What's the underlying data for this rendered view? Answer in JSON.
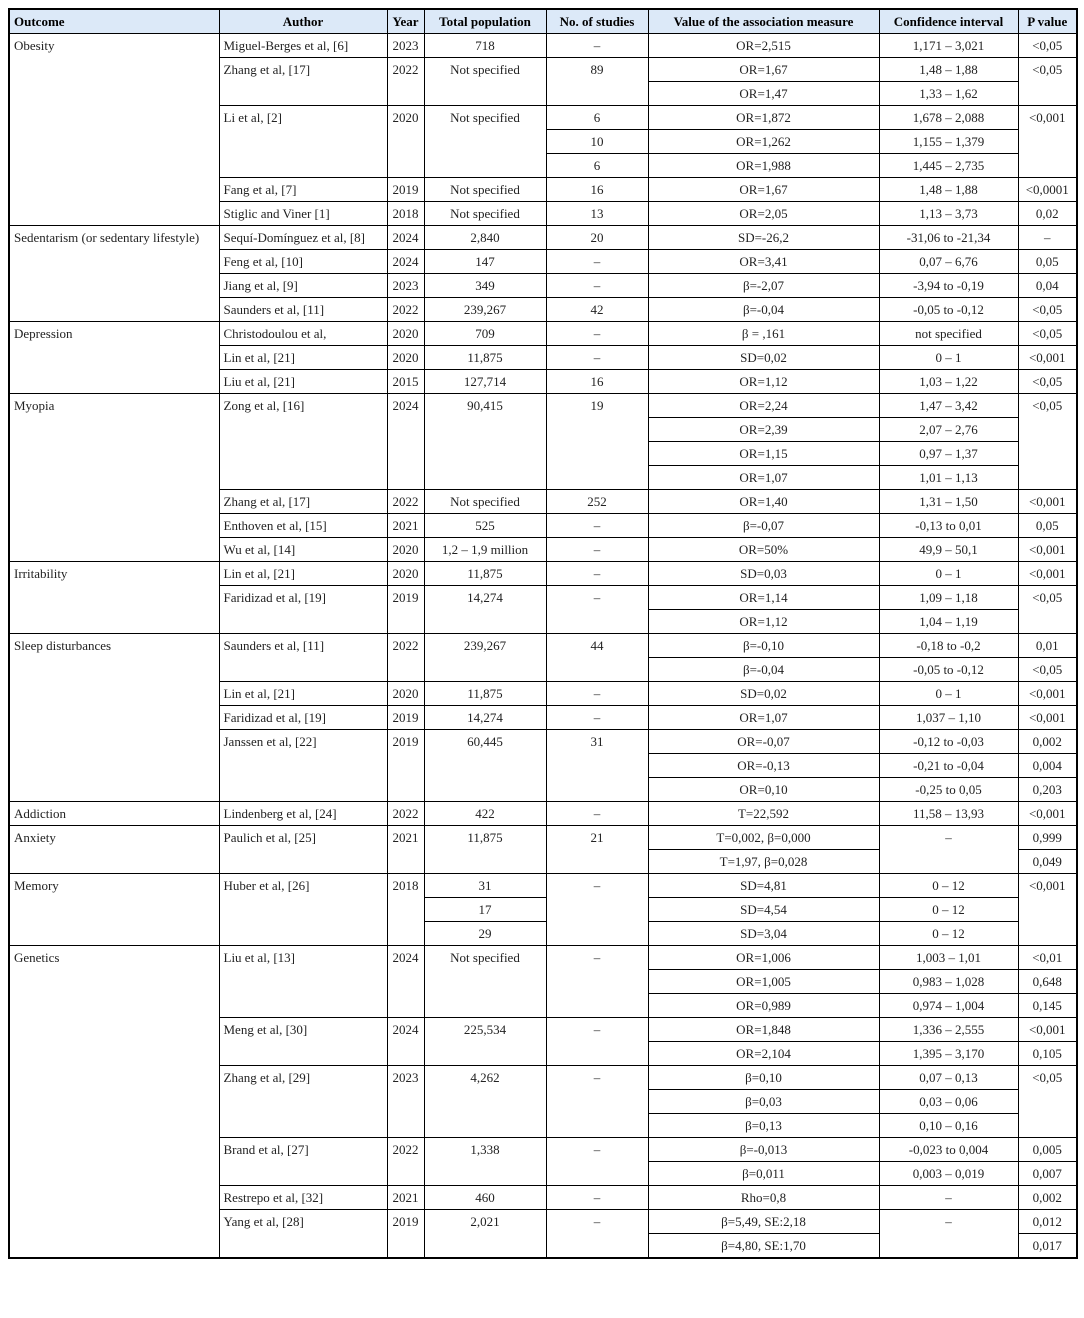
{
  "header_bg": "#dce9f8",
  "columns": [
    "Outcome",
    "Author",
    "Year",
    "Total population",
    "No. of studies",
    "Value of the association measure",
    "Confidence interval",
    "P value"
  ],
  "rows": [
    [
      "Obesity",
      "Miguel-Berges et al, [6]",
      "2023",
      "718",
      "–",
      "OR=2,515",
      "1,171 – 3,021",
      "<0,05"
    ],
    [
      null,
      "Zhang et al, [17]",
      "2022",
      "Not specified",
      "89",
      "OR=1,67",
      "1,48 – 1,88",
      "<0,05"
    ],
    [
      null,
      null,
      null,
      null,
      null,
      "OR=1,47",
      "1,33 – 1,62",
      null
    ],
    [
      null,
      "Li et al, [2]",
      "2020",
      "Not specified",
      "6",
      "OR=1,872",
      "1,678 – 2,088",
      "<0,001"
    ],
    [
      null,
      null,
      null,
      null,
      "10",
      "OR=1,262",
      "1,155 – 1,379",
      null
    ],
    [
      null,
      null,
      null,
      null,
      "6",
      "OR=1,988",
      "1,445 – 2,735",
      null
    ],
    [
      null,
      "Fang et al, [7]",
      "2019",
      "Not specified",
      "16",
      "OR=1,67",
      "1,48 – 1,88",
      "<0,0001"
    ],
    [
      null,
      "Stiglic and Viner [1]",
      "2018",
      "Not specified",
      "13",
      "OR=2,05",
      "1,13 – 3,73",
      "0,02"
    ],
    [
      "Sedentarism (or sedentary lifestyle)",
      "Sequí-Domínguez et al, [8]",
      "2024",
      "2,840",
      "20",
      "SD=-26,2",
      "-31,06 to -21,34",
      "–"
    ],
    [
      null,
      "Feng et al, [10]",
      "2024",
      "147",
      "–",
      "OR=3,41",
      "0,07 – 6,76",
      "0,05"
    ],
    [
      null,
      "Jiang et al, [9]",
      "2023",
      "349",
      "–",
      "β=-2,07",
      "-3,94 to -0,19",
      "0,04"
    ],
    [
      null,
      "Saunders et al, [11]",
      "2022",
      "239,267",
      "42",
      "β=-0,04",
      "-0,05 to -0,12",
      "<0,05"
    ],
    [
      "Depression",
      "Christodoulou et al,",
      "2020",
      "709",
      "–",
      "β = ,161",
      "not specified",
      "<0,05"
    ],
    [
      null,
      "Lin et al, [21]",
      "2020",
      "11,875",
      "–",
      "SD=0,02",
      "0 – 1",
      "<0,001"
    ],
    [
      null,
      "Liu et al, [21]",
      "2015",
      "127,714",
      "16",
      "OR=1,12",
      "1,03 – 1,22",
      "<0,05"
    ],
    [
      "Myopia",
      "Zong et al, [16]",
      "2024",
      "90,415",
      "19",
      "OR=2,24",
      "1,47 – 3,42",
      "<0,05"
    ],
    [
      null,
      null,
      null,
      null,
      null,
      "OR=2,39",
      "2,07 – 2,76",
      null
    ],
    [
      null,
      null,
      null,
      null,
      null,
      "OR=1,15",
      "0,97 – 1,37",
      null
    ],
    [
      null,
      null,
      null,
      null,
      null,
      "OR=1,07",
      "1,01 – 1,13",
      null
    ],
    [
      null,
      "Zhang et al, [17]",
      "2022",
      "Not specified",
      "252",
      "OR=1,40",
      "1,31 – 1,50",
      "<0,001"
    ],
    [
      null,
      "Enthoven et al, [15]",
      "2021",
      "525",
      "–",
      "β=-0,07",
      "-0,13 to 0,01",
      "0,05"
    ],
    [
      null,
      "Wu et al, [14]",
      "2020",
      "1,2 – 1,9 million",
      "–",
      "OR=50%",
      "49,9 – 50,1",
      "<0,001"
    ],
    [
      "Irritability",
      "Lin et al, [21]",
      "2020",
      "11,875",
      "–",
      "SD=0,03",
      "0 – 1",
      "<0,001"
    ],
    [
      null,
      "Faridizad et al, [19]",
      "2019",
      "14,274",
      "–",
      "OR=1,14",
      "1,09 – 1,18",
      "<0,05"
    ],
    [
      null,
      null,
      null,
      null,
      null,
      "OR=1,12",
      "1,04 – 1,19",
      null
    ],
    [
      "Sleep disturbances",
      "Saunders et al, [11]",
      "2022",
      "239,267",
      "44",
      "β=-0,10",
      "-0,18 to -0,2",
      "0,01"
    ],
    [
      null,
      null,
      null,
      null,
      null,
      "β=-0,04",
      "-0,05 to -0,12",
      "<0,05"
    ],
    [
      null,
      "Lin et al, [21]",
      "2020",
      "11,875",
      "–",
      "SD=0,02",
      "0 – 1",
      "<0,001"
    ],
    [
      null,
      "Faridizad et al, [19]",
      "2019",
      "14,274",
      "–",
      "OR=1,07",
      "1,037 – 1,10",
      "<0,001"
    ],
    [
      null,
      "Janssen et al, [22]",
      "2019",
      "60,445",
      "31",
      "OR=-0,07",
      "-0,12 to -0,03",
      "0,002"
    ],
    [
      null,
      null,
      null,
      null,
      null,
      "OR=-0,13",
      "-0,21 to -0,04",
      "0,004"
    ],
    [
      null,
      null,
      null,
      null,
      null,
      "OR=0,10",
      "-0,25 to 0,05",
      "0,203"
    ],
    [
      "Addiction",
      "Lindenberg et al, [24]",
      "2022",
      "422",
      "–",
      "T=22,592",
      "11,58 – 13,93",
      "<0,001"
    ],
    [
      "Anxiety",
      "Paulich et al, [25]",
      "2021",
      "11,875",
      "21",
      "T=0,002,  β=0,000",
      "–",
      "0,999"
    ],
    [
      null,
      null,
      null,
      null,
      null,
      "T=1,97,  β=0,028",
      null,
      "0,049"
    ],
    [
      "Memory",
      "Huber et al, [26]",
      "2018",
      "31",
      "–",
      "SD=4,81",
      "0 – 12",
      "<0,001"
    ],
    [
      null,
      null,
      null,
      "17",
      null,
      "SD=4,54",
      "0 – 12",
      null
    ],
    [
      null,
      null,
      null,
      "29",
      null,
      "SD=3,04",
      "0 – 12",
      null
    ],
    [
      "Genetics",
      "Liu et al, [13]",
      "2024",
      "Not specified",
      "–",
      "OR=1,006",
      "1,003 – 1,01",
      "<0,01"
    ],
    [
      null,
      null,
      null,
      null,
      null,
      "OR=1,005",
      "0,983 – 1,028",
      "0,648"
    ],
    [
      null,
      null,
      null,
      null,
      null,
      "OR=0,989",
      "0,974 – 1,004",
      "0,145"
    ],
    [
      null,
      "Meng et al, [30]",
      "2024",
      "225,534",
      "–",
      "OR=1,848",
      "1,336 – 2,555",
      "<0,001"
    ],
    [
      null,
      null,
      null,
      null,
      null,
      "OR=2,104",
      "1,395 – 3,170",
      "0,105"
    ],
    [
      null,
      "Zhang et al, [29]",
      "2023",
      "4,262",
      "–",
      "β=0,10",
      "0,07 – 0,13",
      "<0,05"
    ],
    [
      null,
      null,
      null,
      null,
      null,
      "β=0,03",
      "0,03 – 0,06",
      null
    ],
    [
      null,
      null,
      null,
      null,
      null,
      "β=0,13",
      "0,10 – 0,16",
      null
    ],
    [
      null,
      "Brand et al, [27]",
      "2022",
      "1,338",
      "–",
      "β=-0,013",
      "-0,023 to 0,004",
      "0,005"
    ],
    [
      null,
      null,
      null,
      null,
      null,
      "β=0,011",
      "0,003 – 0,019",
      "0,007"
    ],
    [
      null,
      "Restrepo et al, [32]",
      "2021",
      "460",
      "–",
      "Rho=0,8",
      "–",
      "0,002"
    ],
    [
      null,
      "Yang et al, [28]",
      "2019",
      "2,021",
      "–",
      "β=5,49, SE:2,18",
      "–",
      "0,012"
    ],
    [
      null,
      null,
      null,
      null,
      null,
      "β=4,80, SE:1,70",
      null,
      "0,017"
    ]
  ]
}
